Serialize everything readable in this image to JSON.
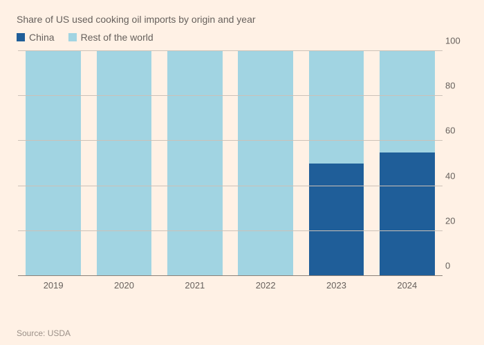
{
  "subtitle": "Share of US used cooking oil imports by origin and year",
  "legend": [
    {
      "label": "China",
      "color": "#1f5e99"
    },
    {
      "label": "Rest of the world",
      "color": "#a1d4e2"
    }
  ],
  "chart": {
    "type": "stacked-bar",
    "background_color": "#fff1e5",
    "grid_color": "#ccc1b7",
    "axis_zero_color": "#8a7f77",
    "label_color": "#66605c",
    "label_fontsize": 13,
    "bar_width_pct": 78,
    "ylim": [
      0,
      100
    ],
    "ytick_step": 20,
    "yticks": [
      0,
      20,
      40,
      60,
      80,
      100
    ],
    "categories": [
      "2019",
      "2020",
      "2021",
      "2022",
      "2023",
      "2024"
    ],
    "series": [
      {
        "name": "China",
        "color": "#1f5e99",
        "values": [
          0,
          0,
          0,
          0,
          50,
          55
        ]
      },
      {
        "name": "Rest of the world",
        "color": "#a1d4e2",
        "values": [
          100,
          100,
          100,
          100,
          50,
          45
        ]
      }
    ]
  },
  "source": "Source: USDA"
}
